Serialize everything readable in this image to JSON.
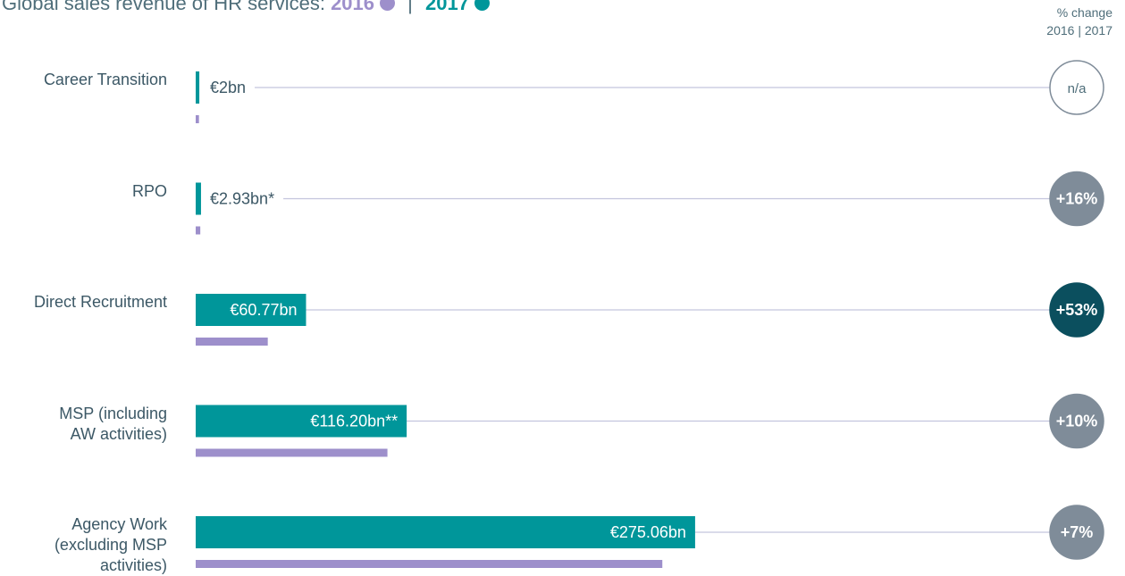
{
  "chart_data": {
    "type": "bar",
    "title": "Global sales revenue of HR services:",
    "change_header": [
      "% change",
      "2016 | 2017"
    ],
    "categories": [
      "Career Transition",
      "RPO",
      "Direct Recruitment",
      "MSP (including\nAW activities)",
      "Agency Work\n(excluding MSP\nactivities)"
    ],
    "series": [
      {
        "name": "2016",
        "color": "#9d8fcb",
        "values": [
          1.8,
          2.53,
          39.7,
          105.6,
          257
        ]
      },
      {
        "name": "2017",
        "color": "#00969a",
        "values": [
          2,
          2.93,
          60.77,
          116.2,
          275.06
        ],
        "value_labels": [
          "€2bn",
          "€2.93bn*",
          "€60.77bn",
          "€116.20bn**",
          "€275.06bn"
        ]
      }
    ],
    "change": [
      "n/a",
      "+16%",
      "+53%",
      "+10%",
      "+7%"
    ],
    "change_colors": [
      "#ffffff",
      "#7f8c99",
      "#0b4f5e",
      "#7f8c99",
      "#7f8c99"
    ],
    "xlim": [
      0,
      300
    ]
  }
}
